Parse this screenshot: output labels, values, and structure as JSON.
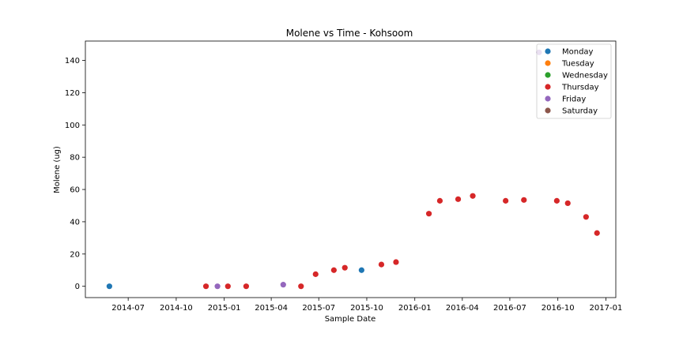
{
  "chart_data": {
    "type": "scatter",
    "title": "Molene vs Time - Kohsoom",
    "xlabel": "Sample Date",
    "ylabel": "Molene (ug)",
    "x_axis": "date",
    "xlim": [
      "2014-04-10",
      "2017-01-20"
    ],
    "ylim": [
      -7,
      152
    ],
    "x_ticks": [
      "2014-07",
      "2014-10",
      "2015-01",
      "2015-04",
      "2015-07",
      "2015-10",
      "2016-01",
      "2016-04",
      "2016-07",
      "2016-10",
      "2017-01"
    ],
    "y_ticks": [
      0,
      20,
      40,
      60,
      80,
      100,
      120,
      140
    ],
    "grid": false,
    "legend_position": "top-right",
    "series": [
      {
        "name": "Monday",
        "color": "#1f77b4",
        "points": [
          [
            "2014-05-26",
            0
          ],
          [
            "2015-09-21",
            10
          ]
        ]
      },
      {
        "name": "Tuesday",
        "color": "#ff7f0e",
        "points": []
      },
      {
        "name": "Wednesday",
        "color": "#2ca02c",
        "points": []
      },
      {
        "name": "Thursday",
        "color": "#d62728",
        "points": [
          [
            "2014-11-27",
            0
          ],
          [
            "2015-01-08",
            0
          ],
          [
            "2015-02-12",
            0
          ],
          [
            "2015-05-28",
            0
          ],
          [
            "2015-06-25",
            7.5
          ],
          [
            "2015-07-30",
            10
          ],
          [
            "2015-08-20",
            11.5
          ],
          [
            "2015-10-29",
            13.5
          ],
          [
            "2015-11-26",
            15
          ],
          [
            "2016-01-28",
            45
          ],
          [
            "2016-02-18",
            53
          ],
          [
            "2016-03-24",
            54
          ],
          [
            "2016-04-21",
            56
          ],
          [
            "2016-06-23",
            53
          ],
          [
            "2016-07-28",
            53.5
          ],
          [
            "2016-09-29",
            53
          ],
          [
            "2016-10-20",
            51.5
          ],
          [
            "2016-11-24",
            43
          ],
          [
            "2016-12-15",
            33
          ]
        ]
      },
      {
        "name": "Friday",
        "color": "#9467bd",
        "points": [
          [
            "2014-12-19",
            0
          ],
          [
            "2015-04-24",
            1
          ],
          [
            "2016-08-26",
            145
          ]
        ]
      },
      {
        "name": "Saturday",
        "color": "#8c564b",
        "points": []
      }
    ]
  }
}
